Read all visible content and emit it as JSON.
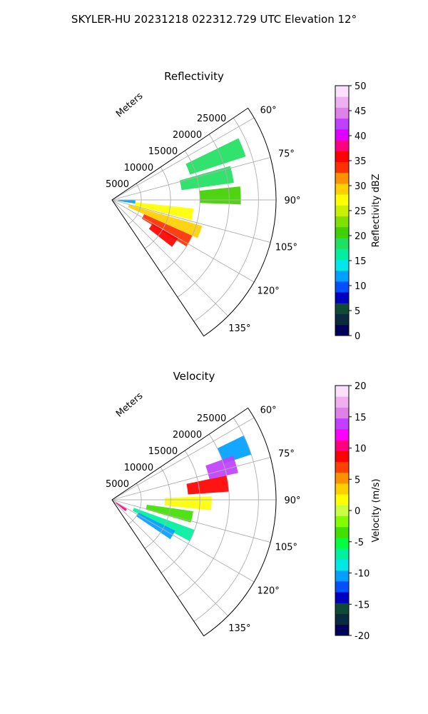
{
  "figure": {
    "suptitle": "SKYLER-HU  20231218  022312.729 UTC Elevation 12°"
  },
  "chart_data": [
    {
      "type": "polar-sector",
      "title": "Reflectivity",
      "radial_label": "Meters",
      "radial_ticks": [
        "5000",
        "10000",
        "15000",
        "20000",
        "25000"
      ],
      "radial_values": [
        5000,
        10000,
        15000,
        20000,
        25000
      ],
      "angular_ticks": [
        "60°",
        "75°",
        "90°",
        "105°",
        "120°",
        "135°"
      ],
      "angular_values": [
        60,
        75,
        90,
        105,
        120,
        135
      ],
      "azimuth_range": [
        56,
        146
      ],
      "range_max": 28000,
      "grid": true,
      "colorbar": {
        "label": "Reflectivity dBZ",
        "ticks": [
          "0",
          "5",
          "10",
          "15",
          "20",
          "25",
          "30",
          "35",
          "40",
          "45",
          "50"
        ],
        "range": [
          0,
          50
        ],
        "colors": [
          "#00005a",
          "#0a2a40",
          "#0f4a35",
          "#0000c0",
          "#0050ff",
          "#00a0ff",
          "#00e8e8",
          "#00f0a0",
          "#20e060",
          "#40d000",
          "#80e000",
          "#c8f000",
          "#ffff00",
          "#ffd000",
          "#ff9000",
          "#ff3000",
          "#ff0000",
          "#ff0080",
          "#e000ff",
          "#c040ff",
          "#e080e8",
          "#f0b0f0",
          "#fae0fa"
        ]
      },
      "echoes": [
        {
          "az": 88,
          "r0": 15000,
          "r1": 22000,
          "value": 20
        },
        {
          "az": 78,
          "r0": 12000,
          "r1": 21000,
          "value": 18
        },
        {
          "az": 68,
          "r0": 14000,
          "r1": 24000,
          "value": 18
        },
        {
          "az": 100,
          "r0": 4000,
          "r1": 14000,
          "value": 28
        },
        {
          "az": 110,
          "r0": 3000,
          "r1": 16000,
          "value": 30
        },
        {
          "az": 118,
          "r0": 6000,
          "r1": 15000,
          "value": 33
        },
        {
          "az": 124,
          "r0": 8000,
          "r1": 13000,
          "value": 36
        },
        {
          "az": 95,
          "r0": 1000,
          "r1": 4000,
          "value": 12
        }
      ]
    },
    {
      "type": "polar-sector",
      "title": "Velocity",
      "radial_label": "Meters",
      "radial_ticks": [
        "5000",
        "10000",
        "15000",
        "20000",
        "25000"
      ],
      "radial_values": [
        5000,
        10000,
        15000,
        20000,
        25000
      ],
      "angular_ticks": [
        "60°",
        "75°",
        "90°",
        "105°",
        "120°",
        "135°"
      ],
      "angular_values": [
        60,
        75,
        90,
        105,
        120,
        135
      ],
      "azimuth_range": [
        56,
        146
      ],
      "range_max": 28000,
      "grid": true,
      "colorbar": {
        "label": "Velocity (m/s)",
        "ticks": [
          "-20",
          "-15",
          "-10",
          "-5",
          "0",
          "5",
          "10",
          "15",
          "20"
        ],
        "range": [
          -20,
          20
        ],
        "colors": [
          "#00005a",
          "#0a2a40",
          "#0f4a35",
          "#0000c0",
          "#0050ff",
          "#00a0ff",
          "#00e8e8",
          "#00f0a0",
          "#00ff40",
          "#40e000",
          "#80ff00",
          "#c8ff40",
          "#ffff00",
          "#ffd000",
          "#ff9000",
          "#ff4000",
          "#ff0000",
          "#ff0080",
          "#ff00ff",
          "#c040ff",
          "#e080e8",
          "#f0b0f0",
          "#fae0fa"
        ]
      },
      "echoes": [
        {
          "az": 68,
          "r0": 20000,
          "r1": 25000,
          "value": -10
        },
        {
          "az": 74,
          "r0": 17000,
          "r1": 22000,
          "value": 14
        },
        {
          "az": 82,
          "r0": 13000,
          "r1": 20000,
          "value": 9
        },
        {
          "az": 92,
          "r0": 9000,
          "r1": 17000,
          "value": 2
        },
        {
          "az": 102,
          "r0": 6000,
          "r1": 14000,
          "value": -3
        },
        {
          "az": 114,
          "r0": 4000,
          "r1": 15000,
          "value": -7
        },
        {
          "az": 120,
          "r0": 5000,
          "r1": 12000,
          "value": -10
        },
        {
          "az": 126,
          "r0": 800,
          "r1": 3000,
          "value": 10
        }
      ]
    }
  ]
}
